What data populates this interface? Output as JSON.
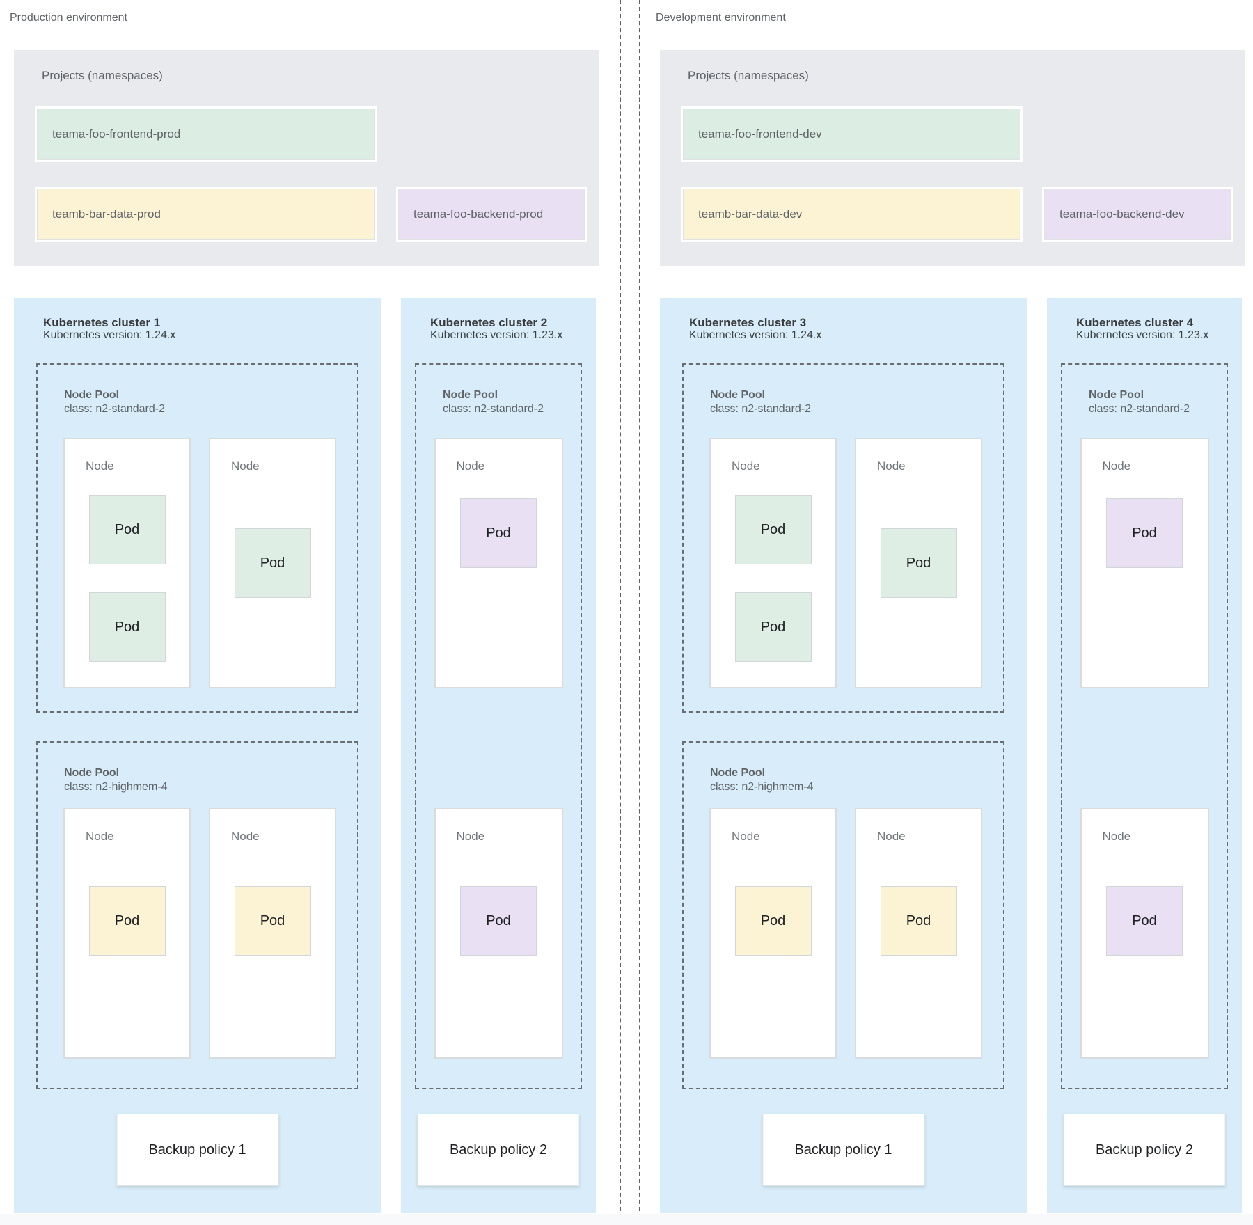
{
  "palette": {
    "cluster_bg": "#d8edf9",
    "projects_bg": "#e8eaed",
    "namespace_green": "#dcede3",
    "namespace_yellow": "#fcf3d4",
    "namespace_purple": "#e9e1f3",
    "text_gray": "#5f6368",
    "text_dark": "#202124"
  },
  "environments": [
    {
      "label": "Production environment",
      "projects": {
        "label": "Projects (namespaces)",
        "namespaces": [
          {
            "name": "teama-foo-frontend-prod",
            "color": "green"
          },
          {
            "name": "teamb-bar-data-prod",
            "color": "yellow"
          },
          {
            "name": "teama-foo-backend-prod",
            "color": "purple"
          }
        ]
      },
      "clusters": [
        {
          "title": "Kubernetes cluster 1",
          "version": "Kubernetes version: 1.24.x",
          "backup_policy": "Backup policy 1",
          "pools": [
            {
              "label": "Node Pool",
              "class": "class: n2-standard-2",
              "nodes": [
                {
                  "label": "Node",
                  "pods": [
                    {
                      "label": "Pod",
                      "color": "green"
                    },
                    {
                      "label": "Pod",
                      "color": "green"
                    }
                  ]
                },
                {
                  "label": "Node",
                  "pods": [
                    {
                      "label": "Pod",
                      "color": "green"
                    }
                  ]
                }
              ]
            },
            {
              "label": "Node Pool",
              "class": "class: n2-highmem-4",
              "nodes": [
                {
                  "label": "Node",
                  "pods": [
                    {
                      "label": "Pod",
                      "color": "yellow"
                    }
                  ]
                },
                {
                  "label": "Node",
                  "pods": [
                    {
                      "label": "Pod",
                      "color": "yellow"
                    }
                  ]
                }
              ]
            }
          ]
        },
        {
          "title": "Kubernetes cluster 2",
          "version": "Kubernetes version: 1.23.x",
          "backup_policy": "Backup policy 2",
          "pools": [
            {
              "label": "Node Pool",
              "class": "class: n2-standard-2",
              "nodes": [
                {
                  "label": "Node",
                  "pods": [
                    {
                      "label": "Pod",
                      "color": "purple"
                    }
                  ]
                },
                {
                  "label": "Node",
                  "pods": [
                    {
                      "label": "Pod",
                      "color": "purple"
                    }
                  ]
                }
              ]
            }
          ]
        }
      ]
    },
    {
      "label": "Development environment",
      "projects": {
        "label": "Projects (namespaces)",
        "namespaces": [
          {
            "name": "teama-foo-frontend-dev",
            "color": "green"
          },
          {
            "name": "teamb-bar-data-dev",
            "color": "yellow"
          },
          {
            "name": "teama-foo-backend-dev",
            "color": "purple"
          }
        ]
      },
      "clusters": [
        {
          "title": "Kubernetes cluster 3",
          "version": "Kubernetes version: 1.24.x",
          "backup_policy": "Backup policy 1",
          "pools": [
            {
              "label": "Node Pool",
              "class": "class: n2-standard-2",
              "nodes": [
                {
                  "label": "Node",
                  "pods": [
                    {
                      "label": "Pod",
                      "color": "green"
                    },
                    {
                      "label": "Pod",
                      "color": "green"
                    }
                  ]
                },
                {
                  "label": "Node",
                  "pods": [
                    {
                      "label": "Pod",
                      "color": "green"
                    }
                  ]
                }
              ]
            },
            {
              "label": "Node Pool",
              "class": "class: n2-highmem-4",
              "nodes": [
                {
                  "label": "Node",
                  "pods": [
                    {
                      "label": "Pod",
                      "color": "yellow"
                    }
                  ]
                },
                {
                  "label": "Node",
                  "pods": [
                    {
                      "label": "Pod",
                      "color": "yellow"
                    }
                  ]
                }
              ]
            }
          ]
        },
        {
          "title": "Kubernetes cluster 4",
          "version": "Kubernetes version: 1.23.x",
          "backup_policy": "Backup policy 2",
          "pools": [
            {
              "label": "Node Pool",
              "class": "class: n2-standard-2",
              "nodes": [
                {
                  "label": "Node",
                  "pods": [
                    {
                      "label": "Pod",
                      "color": "purple"
                    }
                  ]
                },
                {
                  "label": "Node",
                  "pods": [
                    {
                      "label": "Pod",
                      "color": "purple"
                    }
                  ]
                }
              ]
            }
          ]
        }
      ]
    }
  ]
}
